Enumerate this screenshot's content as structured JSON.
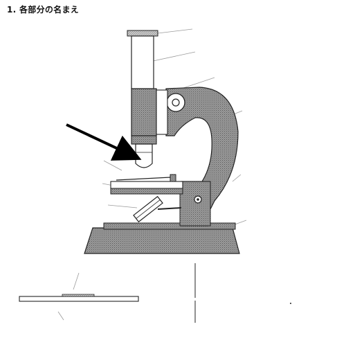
{
  "page": {
    "heading": "1. 各部分の名まえ"
  },
  "diagram": {
    "subject": "microscope",
    "colors": {
      "outline": "#222222",
      "shading": "#8a8a8a",
      "leader_line": "#9a9a9a",
      "arrow": "#000000",
      "background": "#ffffff"
    }
  }
}
